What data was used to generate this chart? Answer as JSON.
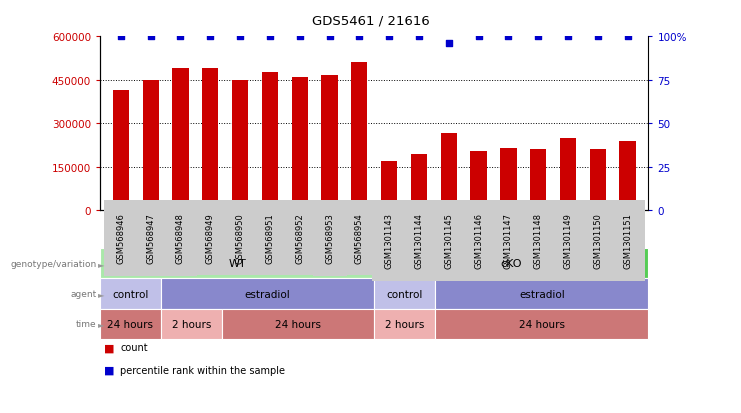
{
  "title": "GDS5461 / 21616",
  "samples": [
    "GSM568946",
    "GSM568947",
    "GSM568948",
    "GSM568949",
    "GSM568950",
    "GSM568951",
    "GSM568952",
    "GSM568953",
    "GSM568954",
    "GSM1301143",
    "GSM1301144",
    "GSM1301145",
    "GSM1301146",
    "GSM1301147",
    "GSM1301148",
    "GSM1301149",
    "GSM1301150",
    "GSM1301151"
  ],
  "counts": [
    415000,
    450000,
    490000,
    490000,
    450000,
    475000,
    460000,
    465000,
    510000,
    170000,
    195000,
    265000,
    205000,
    215000,
    210000,
    250000,
    210000,
    240000
  ],
  "percentile": [
    100,
    100,
    100,
    100,
    100,
    100,
    100,
    100,
    100,
    100,
    100,
    96,
    100,
    100,
    100,
    100,
    100,
    100
  ],
  "bar_color": "#cc0000",
  "dot_color": "#0000cc",
  "ylim_left": [
    0,
    600000
  ],
  "ylim_right": [
    0,
    100
  ],
  "yticks_left": [
    0,
    150000,
    300000,
    450000,
    600000
  ],
  "yticks_right": [
    0,
    25,
    50,
    75,
    100
  ],
  "ytick_labels_left": [
    "0",
    "150000",
    "300000",
    "450000",
    "600000"
  ],
  "ytick_labels_right": [
    "0",
    "25",
    "50",
    "75",
    "100%"
  ],
  "grid_values": [
    150000,
    300000,
    450000
  ],
  "blocks": {
    "genotype": [
      {
        "label": "WT",
        "start": 0,
        "end": 9,
        "color": "#aae8aa"
      },
      {
        "label": "cKO",
        "start": 9,
        "end": 18,
        "color": "#55cc55"
      }
    ],
    "agent": [
      {
        "label": "control",
        "start": 0,
        "end": 2,
        "color": "#c0c0e8"
      },
      {
        "label": "estradiol",
        "start": 2,
        "end": 9,
        "color": "#8888cc"
      },
      {
        "label": "control",
        "start": 9,
        "end": 11,
        "color": "#c0c0e8"
      },
      {
        "label": "estradiol",
        "start": 11,
        "end": 18,
        "color": "#8888cc"
      }
    ],
    "time": [
      {
        "label": "24 hours",
        "start": 0,
        "end": 2,
        "color": "#cc7777"
      },
      {
        "label": "2 hours",
        "start": 2,
        "end": 4,
        "color": "#eeb0b0"
      },
      {
        "label": "24 hours",
        "start": 4,
        "end": 9,
        "color": "#cc7777"
      },
      {
        "label": "2 hours",
        "start": 9,
        "end": 11,
        "color": "#eeb0b0"
      },
      {
        "label": "24 hours",
        "start": 11,
        "end": 18,
        "color": "#cc7777"
      }
    ]
  },
  "row_labels": [
    "genotype/variation",
    "agent",
    "time"
  ],
  "legend": [
    {
      "color": "#cc0000",
      "label": "count"
    },
    {
      "color": "#0000cc",
      "label": "percentile rank within the sample"
    }
  ],
  "bg_color": "#ffffff",
  "tick_label_color_left": "#cc0000",
  "tick_label_color_right": "#0000cc",
  "xtick_bg_color": "#cccccc",
  "label_text_color": "#777777",
  "arrow_color": "#999999"
}
